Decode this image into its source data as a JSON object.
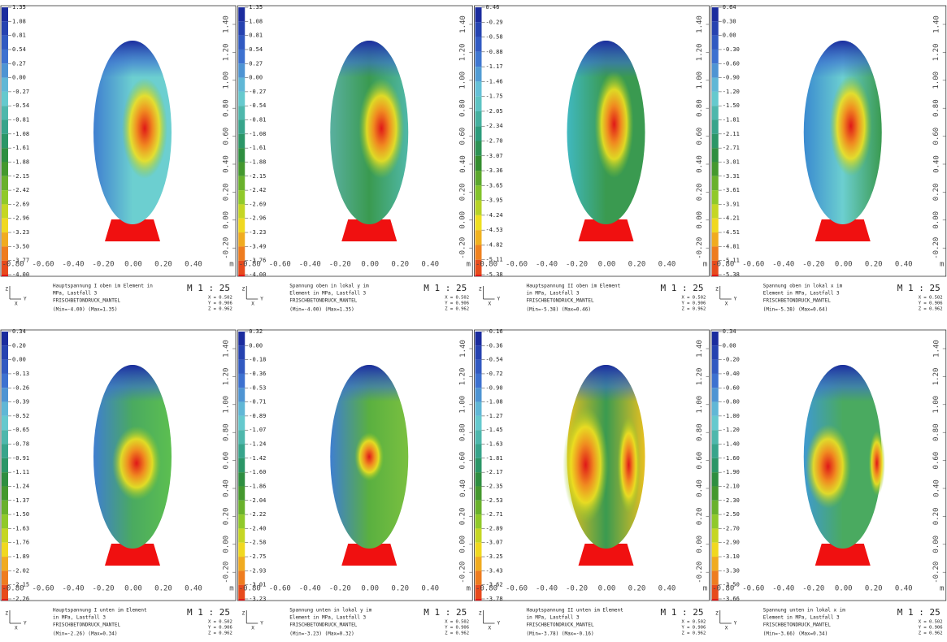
{
  "axes": {
    "x_ticks": [
      "-0.80",
      "-0.60",
      "-0.40",
      "-0.20",
      "0.00",
      "0.20",
      "0.40"
    ],
    "x_unit": "m",
    "y_ticks": [
      "1.40",
      "1.20",
      "1.00",
      "0.80",
      "0.60",
      "0.40",
      "0.20",
      "0.00",
      "-0.20"
    ],
    "triad": [
      "Z",
      "Y",
      "X"
    ]
  },
  "panels": [
    {
      "legend": [
        "1.35",
        "1.08",
        "0.81",
        "0.54",
        "0.27",
        "0.00",
        "-0.27",
        "-0.54",
        "-0.81",
        "-1.08",
        "-1.61",
        "-1.88",
        "-2.15",
        "-2.42",
        "-2.69",
        "-2.96",
        "-3.23",
        "-3.50",
        "-3.77",
        "-4.00"
      ],
      "caption": [
        "Hauptspannung I oben im Element in",
        "MPa, Lastfall 3",
        "FRISCHBETONDRUCK_MANTEL",
        "(Min=-4.00) (Max=1.35)"
      ],
      "scale": "M 1 : 25",
      "coords": [
        "X = 0.502",
        "Y = 0.906",
        "Z = 0.962"
      ]
    },
    {
      "legend": [
        "1.35",
        "1.08",
        "0.81",
        "0.54",
        "0.27",
        "0.00",
        "-0.27",
        "-0.54",
        "-0.81",
        "-1.08",
        "-1.61",
        "-1.88",
        "-2.15",
        "-2.42",
        "-2.69",
        "-2.96",
        "-3.23",
        "-3.49",
        "-3.76",
        "-4.00"
      ],
      "caption": [
        "Spannung oben in lokal y im",
        "Element in MPa, Lastfall 3",
        "FRISCHBETONDRUCK_MANTEL",
        "(Min=-4.00) (Max=1.35)"
      ],
      "scale": "M 1 : 25",
      "coords": [
        "X = 0.502",
        "Y = 0.906",
        "Z = 0.962"
      ]
    },
    {
      "legend": [
        "0.46",
        "-0.29",
        "-0.58",
        "-0.88",
        "-1.17",
        "-1.46",
        "-1.75",
        "-2.05",
        "-2.34",
        "-2.70",
        "-3.07",
        "-3.36",
        "-3.65",
        "-3.95",
        "-4.24",
        "-4.53",
        "-4.82",
        "-5.11",
        "-5.38"
      ],
      "caption": [
        "Hauptspannung II oben im Element",
        "in MPa, Lastfall 3",
        "FRISCHBETONDRUCK_MANTEL",
        "(Min=-5.38) (Max=0.46)"
      ],
      "scale": "M 1 : 25",
      "coords": [
        "X = 0.502",
        "Y = 0.906",
        "Z = 0.962"
      ]
    },
    {
      "legend": [
        "0.64",
        "0.30",
        "0.00",
        "-0.30",
        "-0.60",
        "-0.90",
        "-1.20",
        "-1.50",
        "-1.81",
        "-2.11",
        "-2.71",
        "-3.01",
        "-3.31",
        "-3.61",
        "-3.91",
        "-4.21",
        "-4.51",
        "-4.81",
        "-5.11",
        "-5.38"
      ],
      "caption": [
        "Spannung oben in lokal x im",
        "Element in MPa, Lastfall 3",
        "FRISCHBETONDRUCK_MANTEL",
        "(Min=-5.38) (Max=0.64)"
      ],
      "scale": "M 1 : 25",
      "coords": [
        "X = 0.502",
        "Y = 0.906",
        "Z = 0.962"
      ]
    },
    {
      "legend": [
        "0.34",
        "0.20",
        "0.00",
        "-0.13",
        "-0.26",
        "-0.39",
        "-0.52",
        "-0.65",
        "-0.78",
        "-0.91",
        "-1.11",
        "-1.24",
        "-1.37",
        "-1.50",
        "-1.63",
        "-1.76",
        "-1.89",
        "-2.02",
        "-2.15",
        "-2.26"
      ],
      "caption": [
        "Hauptspannung I unten im Element",
        "in MPa, Lastfall 3",
        "FRISCHBETONDRUCK_MANTEL",
        "(Min=-2.26) (Max=0.34)"
      ],
      "scale": "M 1 : 25",
      "coords": [
        "X = 0.502",
        "Y = 0.906",
        "Z = 0.962"
      ]
    },
    {
      "legend": [
        "0.32",
        "0.00",
        "-0.18",
        "-0.36",
        "-0.53",
        "-0.71",
        "-0.89",
        "-1.07",
        "-1.24",
        "-1.42",
        "-1.60",
        "-1.86",
        "-2.04",
        "-2.22",
        "-2.40",
        "-2.58",
        "-2.75",
        "-2.93",
        "-3.01",
        "-3.23"
      ],
      "caption": [
        "Spannung unten in lokal y im",
        "Element in MPa, Lastfall 3",
        "FRISCHBETONDRUCK_MANTEL",
        "(Min=-3.23) (Max=0.32)"
      ],
      "scale": "M 1 : 25",
      "coords": [
        "X = 0.502",
        "Y = 0.906",
        "Z = 0.962"
      ]
    },
    {
      "legend": [
        "-0.16",
        "-0.36",
        "-0.54",
        "-0.72",
        "-0.90",
        "-1.08",
        "-1.27",
        "-1.45",
        "-1.63",
        "-1.81",
        "-2.17",
        "-2.35",
        "-2.53",
        "-2.71",
        "-2.89",
        "-3.07",
        "-3.25",
        "-3.43",
        "-3.62",
        "-3.78"
      ],
      "caption": [
        "Hauptspannung II unten im Element",
        "in MPa, Lastfall 3",
        "FRISCHBETONDRUCK_MANTEL",
        "(Min=-3.78) (Max=-0.16)"
      ],
      "scale": "M 1 : 25",
      "coords": [
        "X = 0.502",
        "Y = 0.906",
        "Z = 0.962"
      ]
    },
    {
      "legend": [
        "0.34",
        "0.00",
        "-0.20",
        "-0.40",
        "-0.60",
        "-0.80",
        "-1.00",
        "-1.20",
        "-1.40",
        "-1.60",
        "-1.90",
        "-2.10",
        "-2.30",
        "-2.50",
        "-2.70",
        "-2.90",
        "-3.10",
        "-3.30",
        "-3.50",
        "-3.66"
      ],
      "caption": [
        "Spannung unten in lokal x im",
        "Element in MPa, Lastfall 3",
        "FRISCHBETONDRUCK_MANTEL",
        "(Min=-3.66) (Max=0.34)"
      ],
      "scale": "M 1 : 25",
      "coords": [
        "X = 0.502",
        "Y = 0.906",
        "Z = 0.962"
      ]
    }
  ]
}
